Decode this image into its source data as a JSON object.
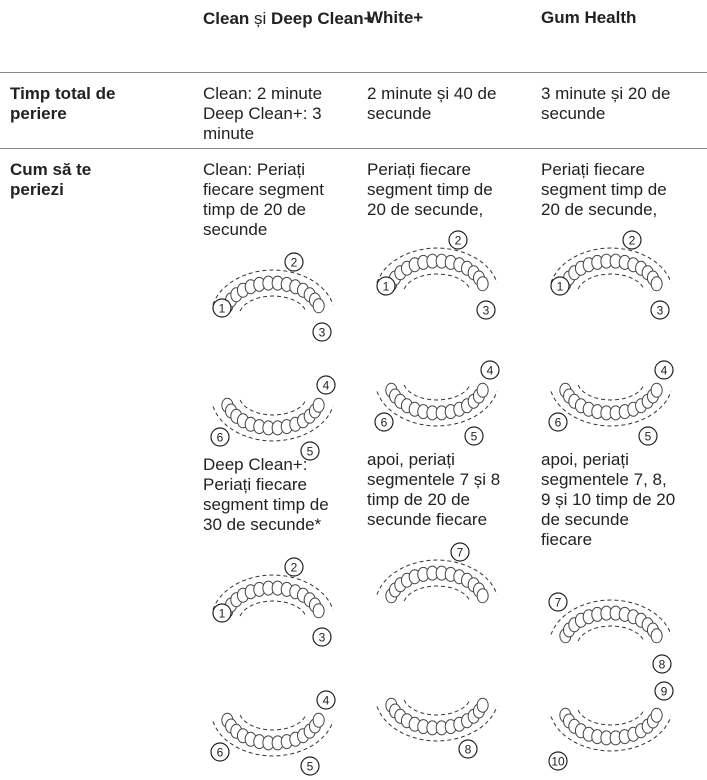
{
  "table": {
    "columns": [
      [
        "Clean",
        "și",
        "Deep Clean+"
      ],
      "White+",
      "Gum Health"
    ],
    "rows": [
      {
        "header": [
          "Timp total de",
          "periere"
        ],
        "cells": [
          [
            {
              "lines": [
                "Clean: 2 minute",
                "Deep Clean+: 3",
                "minute"
              ]
            }
          ],
          [
            {
              "lines": [
                "2 minute și 40 de",
                "secunde"
              ]
            }
          ],
          [
            {
              "lines": [
                "3 minute și 20 de",
                "secunde"
              ]
            }
          ]
        ]
      },
      {
        "header": [
          "Cum să te",
          "periezi"
        ],
        "cells": [
          [
            {
              "lines": [
                "Clean: Periați",
                "fiecare segment",
                "timp de 20 de",
                "secunde"
              ]
            },
            {
              "labels": [
                "1",
                "2",
                "3"
              ]
            },
            {
              "labels": [
                "4",
                "5",
                "6"
              ]
            },
            {
              "lines": [
                "Deep Clean+:",
                "Periați fiecare",
                "segment timp de",
                "30 de secunde*"
              ]
            },
            {
              "labels": [
                "1",
                "2",
                "3"
              ]
            },
            {
              "labels": [
                "4",
                "5",
                "6"
              ]
            }
          ],
          [
            {
              "lines": [
                "Periați fiecare",
                "segment timp de",
                "20 de secunde,"
              ]
            },
            {
              "labels": [
                "1",
                "2",
                "3"
              ]
            },
            {
              "labels": [
                "4",
                "5",
                "6"
              ]
            },
            {
              "lines": [
                "apoi, periați",
                "segmentele 7 și 8",
                "timp de 20 de",
                "secunde fiecare"
              ]
            },
            {
              "labels": [
                "7"
              ]
            },
            {
              "labels": [
                "8"
              ]
            }
          ],
          [
            {
              "lines": [
                "Periați fiecare",
                "segment timp de",
                "20 de secunde,"
              ]
            },
            {
              "labels": [
                "1",
                "2",
                "3"
              ]
            },
            {
              "labels": [
                "4",
                "5",
                "6"
              ]
            },
            {
              "lines": [
                "apoi, periați",
                "segmentele 7, 8,",
                "9 și 10 timp de 20",
                "de secunde",
                "fiecare"
              ]
            },
            {
              "labels": [
                "7",
                "8"
              ]
            },
            {
              "labels": [
                "9",
                "10"
              ]
            }
          ]
        ]
      }
    ]
  }
}
